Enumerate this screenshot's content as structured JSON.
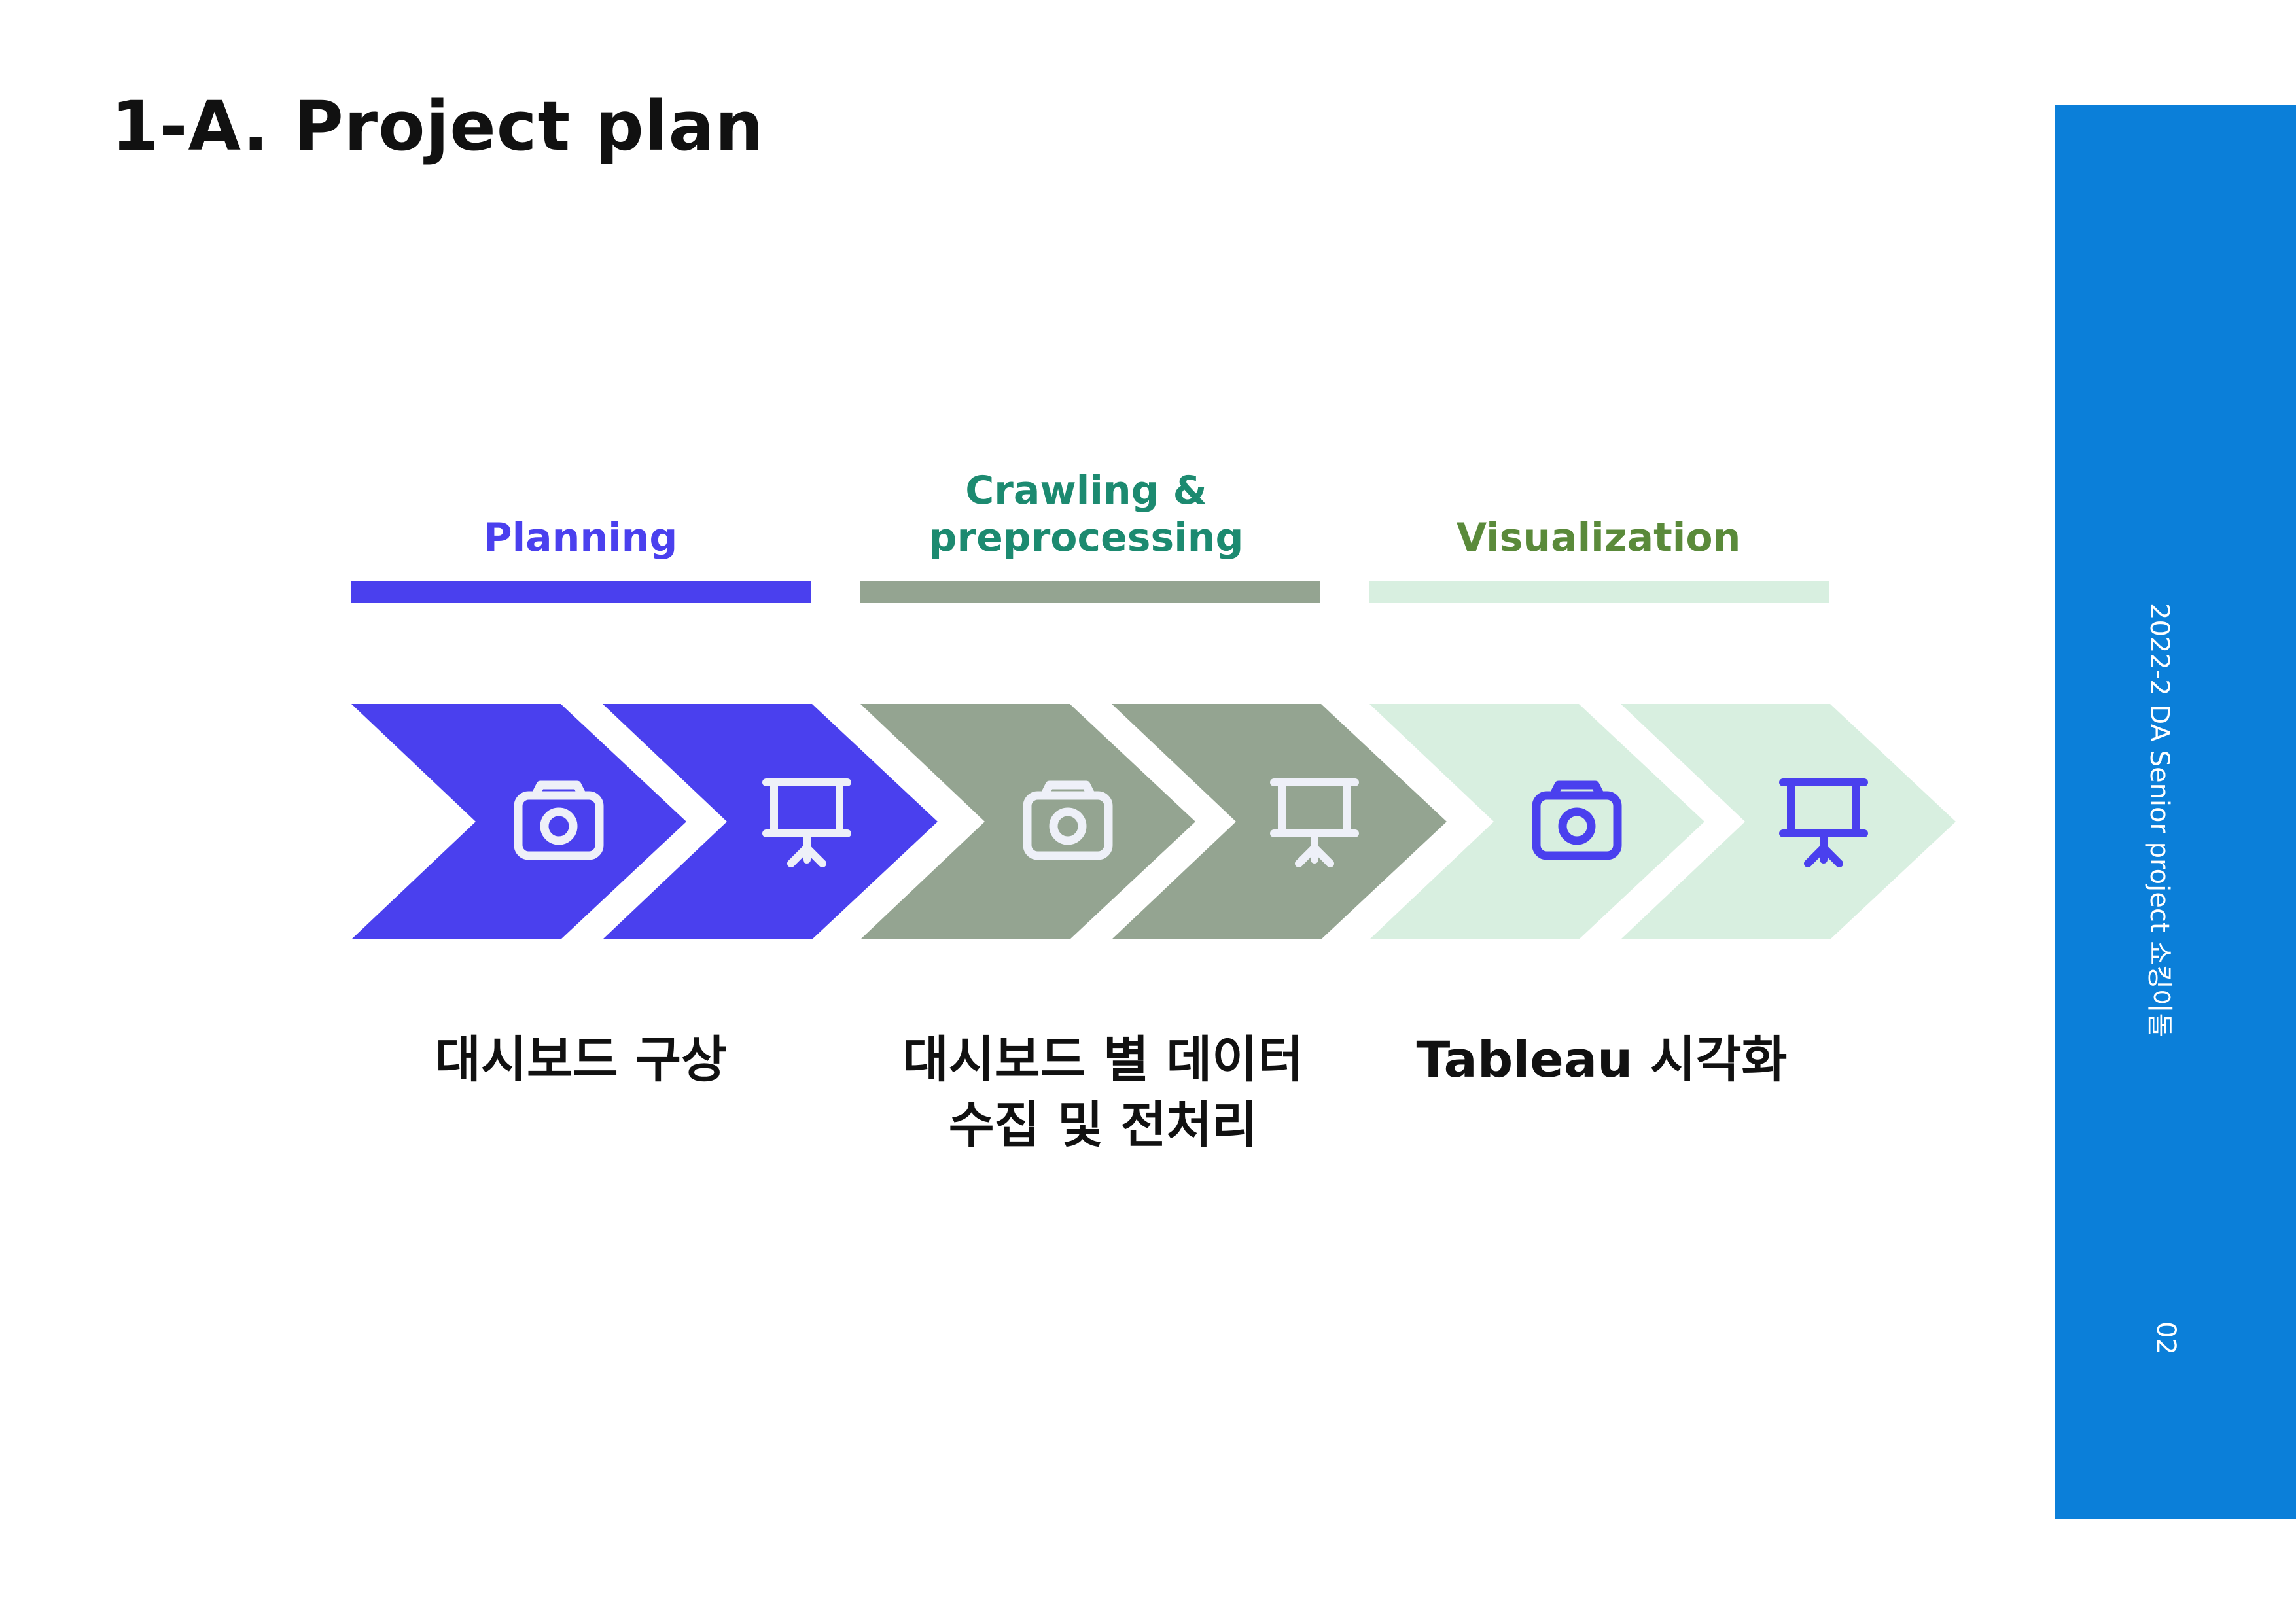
{
  "title": "1-A. Project plan",
  "sidebar": {
    "text": "2022-2 DA Senior project 쇼킹이돌",
    "page_number": "02",
    "color": "#0b7fd9"
  },
  "phases": [
    {
      "label": "Planning",
      "color": "#4a40ee",
      "text_color": "#4a40ee",
      "description": "대시보드 구상"
    },
    {
      "label_line1": "Crawling &",
      "label_line2": "preprocessing",
      "color": "#94a491",
      "text_color": "#1c8a70",
      "description_line1": "대시보드 별 데이터",
      "description_line2": "수집 및 전처리"
    },
    {
      "label": "Visualization",
      "color": "#d8efe0",
      "text_color": "#5a8a3a",
      "description": "Tableau 시각화"
    }
  ],
  "icons": [
    "camera-icon",
    "presentation-icon"
  ],
  "icon_colors": {
    "light": "#eef0f8",
    "dark": "#4a40ee"
  }
}
